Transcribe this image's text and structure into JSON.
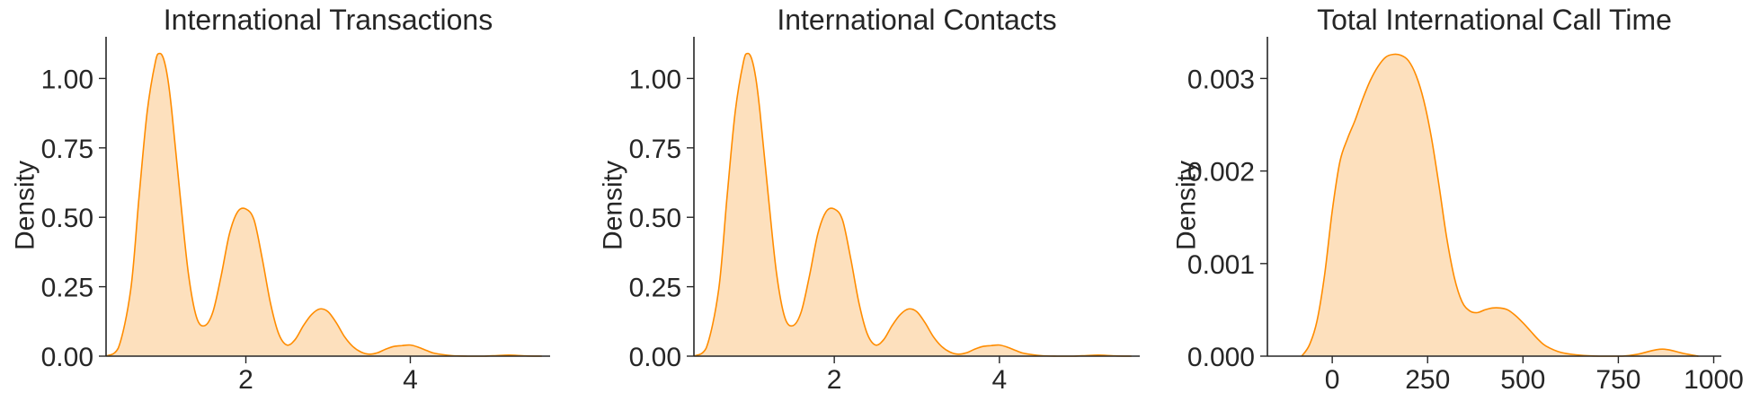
{
  "chart_data": [
    {
      "type": "area",
      "title": "International Transactions",
      "xlabel": "",
      "ylabel": "Density",
      "xlim": [
        0.3,
        5.7
      ],
      "ylim": [
        0,
        1.15
      ],
      "xticks": [
        2,
        4
      ],
      "xtick_labels": [
        "2",
        "4"
      ],
      "yticks": [
        0,
        0.25,
        0.5,
        0.75,
        1.0
      ],
      "ytick_labels": [
        "0.00",
        "0.25",
        "0.50",
        "0.75",
        "1.00"
      ],
      "grid": false,
      "color": "#ff8c00",
      "fill_color": "#fde0bd",
      "series": [
        {
          "x": [
            0.3,
            0.45,
            0.6,
            0.7,
            0.8,
            0.9,
            0.95,
            1.0,
            1.05,
            1.1,
            1.2,
            1.3,
            1.4,
            1.5,
            1.6,
            1.7,
            1.8,
            1.9,
            2.0,
            2.1,
            2.2,
            2.3,
            2.4,
            2.5,
            2.6,
            2.7,
            2.8,
            2.9,
            3.0,
            3.1,
            3.2,
            3.3,
            3.4,
            3.5,
            3.6,
            3.7,
            3.8,
            3.9,
            4.0,
            4.1,
            4.2,
            4.3,
            4.5,
            4.7,
            4.9,
            5.05,
            5.2,
            5.4,
            5.6
          ],
          "y": [
            0.0,
            0.03,
            0.24,
            0.57,
            0.88,
            1.06,
            1.09,
            1.07,
            1.0,
            0.88,
            0.58,
            0.3,
            0.14,
            0.11,
            0.16,
            0.29,
            0.44,
            0.52,
            0.53,
            0.49,
            0.35,
            0.19,
            0.08,
            0.04,
            0.06,
            0.11,
            0.15,
            0.17,
            0.16,
            0.12,
            0.07,
            0.035,
            0.015,
            0.007,
            0.012,
            0.025,
            0.035,
            0.038,
            0.04,
            0.032,
            0.02,
            0.01,
            0.002,
            0.0,
            0.0,
            0.002,
            0.004,
            0.001,
            0.0
          ]
        }
      ]
    },
    {
      "type": "area",
      "title": "International Contacts",
      "xlabel": "",
      "ylabel": "Density",
      "xlim": [
        0.3,
        5.7
      ],
      "ylim": [
        0,
        1.15
      ],
      "xticks": [
        2,
        4
      ],
      "xtick_labels": [
        "2",
        "4"
      ],
      "yticks": [
        0,
        0.25,
        0.5,
        0.75,
        1.0
      ],
      "ytick_labels": [
        "0.00",
        "0.25",
        "0.50",
        "0.75",
        "1.00"
      ],
      "grid": false,
      "color": "#ff8c00",
      "fill_color": "#fde0bd",
      "series": [
        {
          "x": [
            0.3,
            0.45,
            0.6,
            0.7,
            0.8,
            0.9,
            0.95,
            1.0,
            1.05,
            1.1,
            1.2,
            1.3,
            1.4,
            1.5,
            1.6,
            1.7,
            1.8,
            1.9,
            2.0,
            2.1,
            2.2,
            2.3,
            2.4,
            2.5,
            2.6,
            2.7,
            2.8,
            2.9,
            3.0,
            3.1,
            3.2,
            3.3,
            3.4,
            3.5,
            3.6,
            3.7,
            3.8,
            3.9,
            4.0,
            4.1,
            4.2,
            4.3,
            4.5,
            4.7,
            4.9,
            5.05,
            5.2,
            5.4,
            5.6
          ],
          "y": [
            0.0,
            0.03,
            0.24,
            0.57,
            0.88,
            1.06,
            1.09,
            1.07,
            1.0,
            0.88,
            0.58,
            0.3,
            0.14,
            0.11,
            0.16,
            0.29,
            0.44,
            0.52,
            0.53,
            0.49,
            0.35,
            0.19,
            0.08,
            0.04,
            0.06,
            0.11,
            0.15,
            0.17,
            0.16,
            0.12,
            0.07,
            0.035,
            0.015,
            0.007,
            0.012,
            0.025,
            0.035,
            0.038,
            0.04,
            0.032,
            0.02,
            0.01,
            0.002,
            0.0,
            0.0,
            0.002,
            0.004,
            0.001,
            0.0
          ]
        }
      ]
    },
    {
      "type": "area",
      "title": "Total International Call Time",
      "xlabel": "",
      "ylabel": "Density",
      "xlim": [
        -170,
        1020
      ],
      "ylim": [
        0,
        0.00345
      ],
      "xticks": [
        0,
        250,
        500,
        750,
        1000
      ],
      "xtick_labels": [
        "0",
        "250",
        "500",
        "750",
        "1000"
      ],
      "yticks": [
        0,
        0.001,
        0.002,
        0.003
      ],
      "ytick_labels": [
        "0.000",
        "0.001",
        "0.002",
        "0.003"
      ],
      "grid": false,
      "color": "#ff8c00",
      "fill_color": "#fde0bd",
      "series": [
        {
          "x": [
            -80,
            -60,
            -40,
            -20,
            0,
            20,
            40,
            60,
            80,
            100,
            120,
            140,
            160,
            180,
            200,
            220,
            240,
            260,
            280,
            300,
            320,
            340,
            360,
            380,
            400,
            420,
            440,
            460,
            480,
            500,
            520,
            540,
            560,
            600,
            650,
            700,
            760,
            800,
            850,
            880,
            920,
            960
          ],
          "y": [
            0.0,
            0.00012,
            0.00038,
            0.00088,
            0.00157,
            0.0021,
            0.00235,
            0.00255,
            0.00278,
            0.00298,
            0.00313,
            0.00323,
            0.00326,
            0.00325,
            0.00319,
            0.00303,
            0.00276,
            0.00236,
            0.00184,
            0.00128,
            0.00085,
            0.00059,
            0.00049,
            0.00047,
            0.0005,
            0.00052,
            0.00052,
            0.0005,
            0.00044,
            0.00036,
            0.00027,
            0.00018,
            0.00011,
            4e-05,
            1e-05,
            0.0,
            0.0,
            2e-05,
            7e-05,
            7e-05,
            3e-05,
            0.0
          ]
        }
      ]
    }
  ]
}
